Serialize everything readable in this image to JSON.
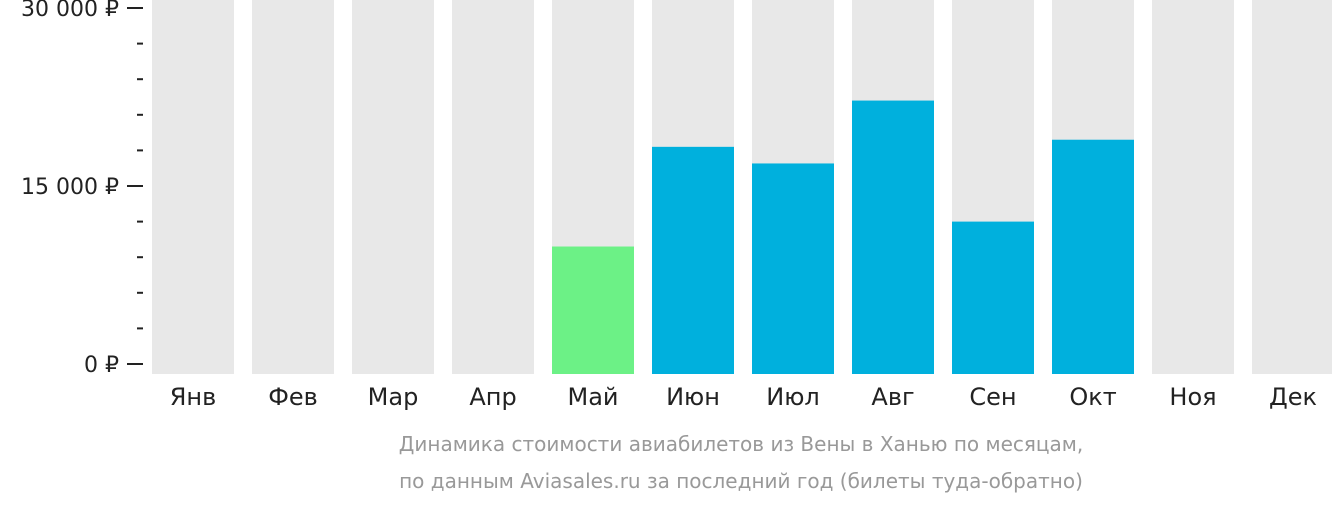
{
  "chart_data": {
    "type": "bar",
    "categories": [
      "Янв",
      "Фев",
      "Мар",
      "Апр",
      "Май",
      "Июн",
      "Июл",
      "Авг",
      "Сен",
      "Окт",
      "Ноя",
      "Дек"
    ],
    "values": [
      null,
      null,
      null,
      null,
      9900,
      18300,
      16900,
      22200,
      12000,
      18900,
      null,
      null
    ],
    "ylim": [
      0,
      30000
    ],
    "y_ticks": [
      {
        "value": 30000,
        "label": "30 000 ₽"
      },
      {
        "value": 15000,
        "label": "15 000 ₽"
      },
      {
        "value": 0,
        "label": "0 ₽"
      }
    ],
    "y_minor_ticks": [
      3000,
      6000,
      9000,
      12000,
      18000,
      21000,
      24000,
      27000
    ],
    "highlight_category": "Май",
    "colors": {
      "background_bar": "#e8e8e8",
      "bar": "#00b0dd",
      "highlight": "#6cf186",
      "axis": "#222222",
      "caption": "#999999"
    }
  },
  "caption": {
    "line1": "Динамика стоимости авиабилетов из Вены в Ханью по месяцам,",
    "line2": "по данным Aviasales.ru за последний год (билеты туда-обратно)"
  }
}
